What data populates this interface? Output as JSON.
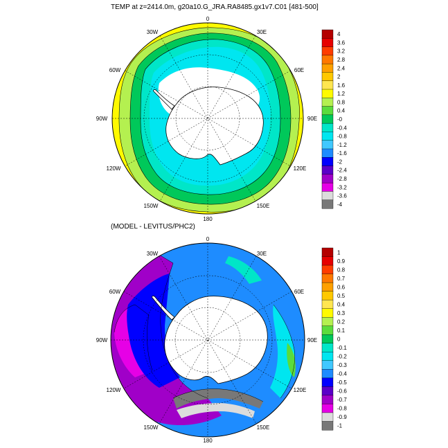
{
  "top_panel": {
    "title": "TEMP at z=2414.0m, g20a10.G_JRA.RA8485.gx1v7.C01 [481-500]",
    "longitude_labels": {
      "lon_0": "0",
      "lon_30e": "30E",
      "lon_60e": "60E",
      "lon_90e": "90E",
      "lon_120e": "120E",
      "lon_150e": "150E",
      "lon_180": "180",
      "lon_150w": "150W",
      "lon_120w": "120W",
      "lon_90w": "90W",
      "lon_60w": "60W",
      "lon_30w": "30W"
    },
    "colorbar": {
      "labels": [
        "4",
        "3.6",
        "3.2",
        "2.8",
        "2.4",
        "2",
        "1.6",
        "1.2",
        "0.8",
        "0.4",
        "-0",
        "-0.4",
        "-0.8",
        "-1.2",
        "-1.6",
        "-2",
        "-2.4",
        "-2.8",
        "-3.2",
        "-3.6",
        "-4"
      ],
      "colors": [
        "#b40000",
        "#e60000",
        "#ff3c00",
        "#ff7800",
        "#ffa000",
        "#ffc800",
        "#ffe650",
        "#fffa00",
        "#b4f050",
        "#5adc3c",
        "#00c85a",
        "#00e6c8",
        "#00e6f0",
        "#40c8ff",
        "#1e8cff",
        "#0000ff",
        "#5a00c8",
        "#a000c8",
        "#e600e6",
        "#dcdcdc",
        "#787878"
      ]
    }
  },
  "bottom_panel": {
    "title": "(MODEL - LEVITUS/PHC2)",
    "longitude_labels": {
      "lon_0": "0",
      "lon_30e": "30E",
      "lon_60e": "60E",
      "lon_90e": "90E",
      "lon_120e": "120E",
      "lon_150e": "150E",
      "lon_180": "180",
      "lon_150w": "150W",
      "lon_120w": "120W",
      "lon_90w": "90W",
      "lon_60w": "60W",
      "lon_30w": "30W"
    },
    "colorbar": {
      "labels": [
        "1",
        "0.9",
        "0.8",
        "0.7",
        "0.6",
        "0.5",
        "0.4",
        "0.3",
        "0.2",
        "0.1",
        "0",
        "-0.1",
        "-0.2",
        "-0.3",
        "-0.4",
        "-0.5",
        "-0.6",
        "-0.7",
        "-0.8",
        "-0.9",
        "-1"
      ],
      "colors": [
        "#b40000",
        "#e60000",
        "#ff3c00",
        "#ff7800",
        "#ffa000",
        "#ffc800",
        "#ffe650",
        "#fffa00",
        "#b4f050",
        "#5adc3c",
        "#00c85a",
        "#00e6c8",
        "#00e6f0",
        "#40c8ff",
        "#1e8cff",
        "#0000ff",
        "#5a00c8",
        "#a000c8",
        "#e600e6",
        "#dcdcdc",
        "#787878"
      ]
    }
  }
}
